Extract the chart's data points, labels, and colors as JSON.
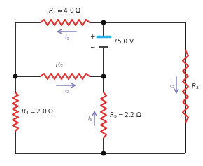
{
  "bg_color": "#ffffff",
  "wire_color": "#1a1a1a",
  "resistor_color": "#e03030",
  "arrow_color": "#7878b8",
  "battery_plus_color": "#2ab0e8",
  "battery_minus_color": "#444444",
  "dot_color": "#111111",
  "label_color": "#222222",
  "current_label_color": "#7878b8",
  "R1_label": "$R_1 = 4.0\\ \\Omega$",
  "R2_label": "$R_2$",
  "R3_label": "$R_3$",
  "R4_label": "$R_4 = 2.0\\ \\Omega$",
  "R5_label": "$R_5 = 2.2\\ \\Omega$",
  "battery_label": "75.0 V",
  "I1_label": "$I_1$",
  "I2_label": "$I_2$",
  "I3_label": "$I_3$",
  "I5_label": "$I_5$",
  "plus_label": "+",
  "minus_label": "−"
}
